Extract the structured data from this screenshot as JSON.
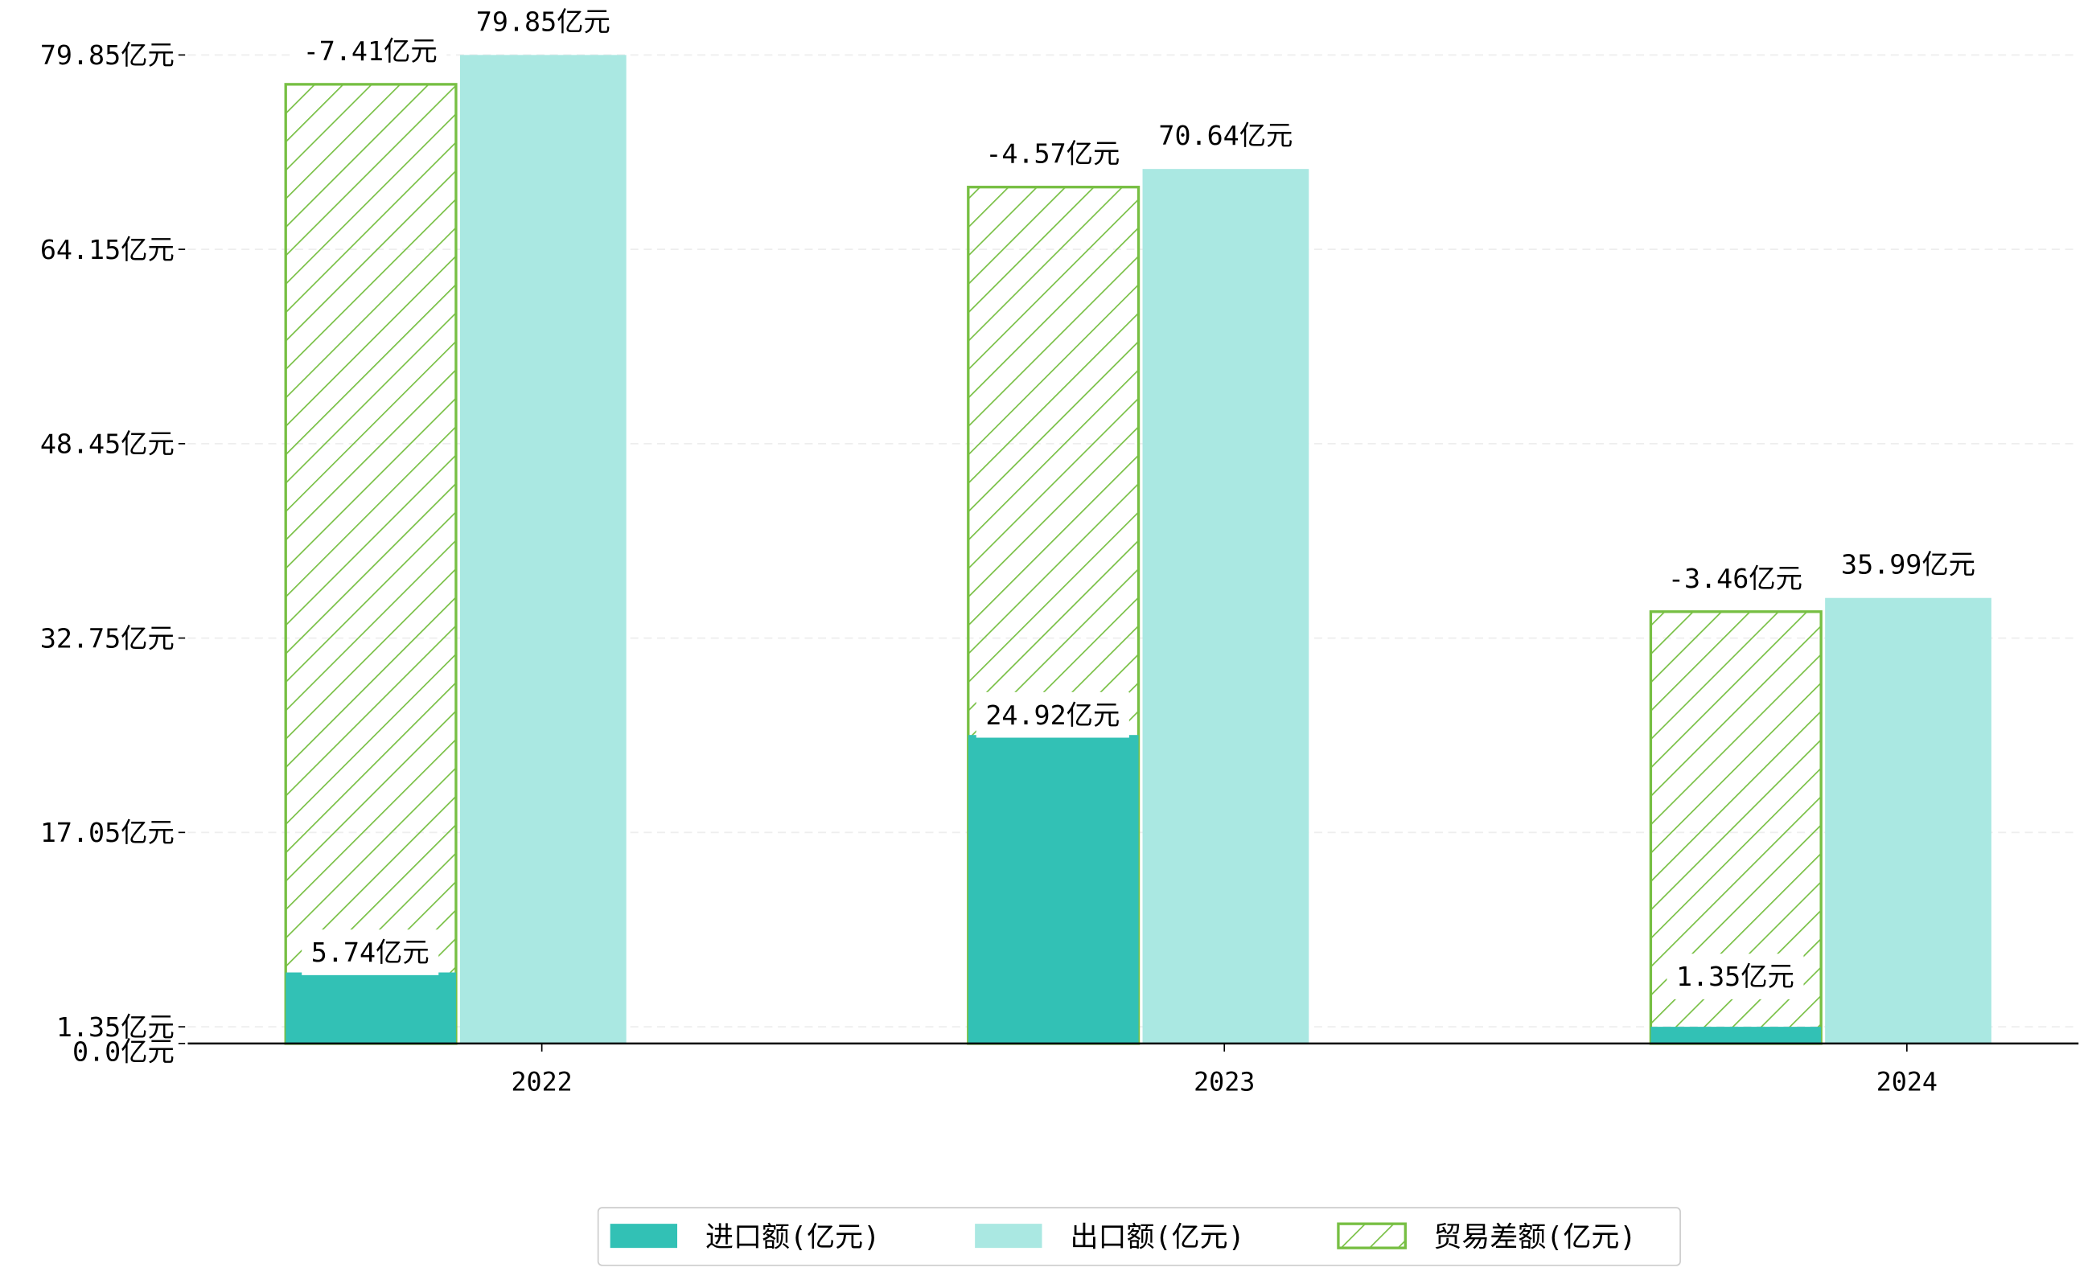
{
  "chart_data": {
    "type": "bar",
    "title": "",
    "xlabel": "",
    "ylabel": "",
    "categories": [
      "2022",
      "2023",
      "2024"
    ],
    "unit_suffix": "亿元",
    "ylim": [
      0,
      79.85
    ],
    "yticks": [
      0.0,
      1.35,
      17.05,
      32.75,
      48.45,
      64.15,
      79.85
    ],
    "ytick_labels": [
      "0.0亿元",
      "1.35亿元",
      "17.05亿元",
      "32.75亿元",
      "48.45亿元",
      "64.15亿元",
      "79.85亿元"
    ],
    "grid": "y dashed",
    "legend_position": "bottom-center",
    "series": [
      {
        "name": "进口额(亿元)",
        "values": [
          5.74,
          24.92,
          1.35
        ],
        "labels": [
          "5.74亿元",
          "24.92亿元",
          "1.35亿元"
        ],
        "color": "#32c1b5",
        "style": "solid"
      },
      {
        "name": "出口额(亿元)",
        "values": [
          79.85,
          70.64,
          35.99
        ],
        "labels": [
          "79.85亿元",
          "70.64亿元",
          "35.99亿元"
        ],
        "color": "#aae8e2",
        "style": "solid"
      },
      {
        "name": "贸易差额(亿元)",
        "values": [
          -7.41,
          -4.57,
          -3.46
        ],
        "labels": [
          "-7.41亿元",
          "-4.57亿元",
          "-3.46亿元"
        ],
        "color": "#77bf43",
        "style": "hatched"
      }
    ]
  }
}
